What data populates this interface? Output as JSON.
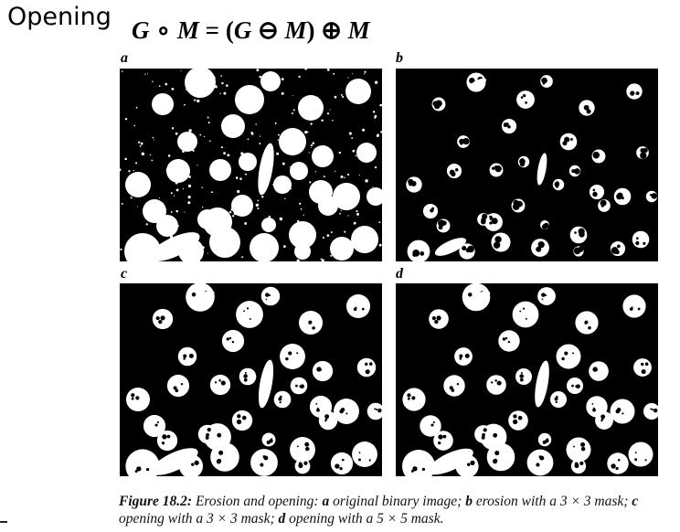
{
  "slide": {
    "title": "Opening"
  },
  "formula": {
    "G": "G",
    "circle_op": "∘",
    "M": "M",
    "equals": "=",
    "open_paren": "(",
    "minus_op": "⊖",
    "close_paren": ")",
    "plus_op": "⊕"
  },
  "panels": [
    {
      "label": "a",
      "variant": "original"
    },
    {
      "label": "b",
      "variant": "erosion"
    },
    {
      "label": "c",
      "variant": "open3"
    },
    {
      "label": "d",
      "variant": "open5"
    }
  ],
  "caption": {
    "figure": "Figure 18.2:",
    "part1": " Erosion and opening: ",
    "a": "a",
    "part2": " original binary image; ",
    "b": "b",
    "part3": " erosion with a 3 × 3 mask; ",
    "c": "c",
    "part4": " opening with a 3 × 3 mask; ",
    "d": "d",
    "part5": " opening with a 5 × 5 mask."
  },
  "colors": {
    "foreground": "#ffffff",
    "background": "#000000"
  }
}
